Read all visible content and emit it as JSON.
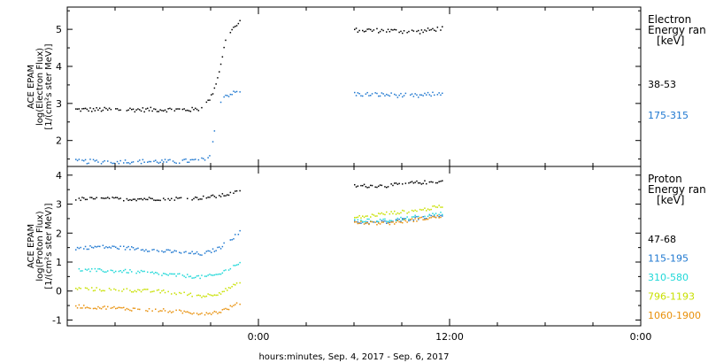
{
  "chart_data": [
    {
      "type": "scatter",
      "panel": "electron",
      "ylabel_lines": [
        "ACE EPAM",
        "log(Electron Flux)",
        "[1/(cm²s ster MeV)]"
      ],
      "ylim": [
        1.3,
        5.6
      ],
      "yticks": [
        2,
        3,
        4,
        5
      ],
      "xlim": [
        -12,
        24
      ],
      "legend_title_lines": [
        "Electron",
        "Energy ran",
        "[keV]"
      ],
      "series": [
        {
          "name": "38-53",
          "color": "#000000",
          "segments": [
            [
              [
                -11.5,
                2.85
              ],
              [
                -8,
                2.85
              ],
              [
                -4,
                2.85
              ],
              [
                -3.5,
                2.9
              ],
              [
                -3.0,
                3.2
              ],
              [
                -2.6,
                3.7
              ],
              [
                -2.3,
                4.3
              ],
              [
                -2.0,
                4.9
              ],
              [
                -1.2,
                5.2
              ]
            ],
            [
              [
                6.0,
                5.0
              ],
              [
                8,
                4.98
              ],
              [
                10,
                4.95
              ],
              [
                11.5,
                5.05
              ]
            ]
          ]
        },
        {
          "name": "175-315",
          "color": "#1f78d0",
          "segments": [
            [
              [
                -11.5,
                1.45
              ],
              [
                -8,
                1.45
              ],
              [
                -5,
                1.45
              ],
              [
                -3.2,
                1.5
              ],
              [
                -2.9,
                2.0
              ],
              [
                -2.6,
                2.8
              ],
              [
                -2.3,
                3.2
              ],
              [
                -1.2,
                3.35
              ]
            ],
            [
              [
                6.0,
                3.27
              ],
              [
                8,
                3.25
              ],
              [
                10,
                3.22
              ],
              [
                11.5,
                3.3
              ]
            ]
          ]
        }
      ]
    },
    {
      "type": "scatter",
      "panel": "proton",
      "ylabel_lines": [
        "ACE EPAM",
        "log(Proton Flux)",
        "[1/(cm²s ster MeV)]"
      ],
      "ylim": [
        -1.2,
        4.3
      ],
      "yticks": [
        -1,
        0,
        1,
        2,
        3,
        4
      ],
      "xlim": [
        -12,
        24
      ],
      "xticks": [
        0,
        12,
        24
      ],
      "xticklabels": [
        "0:00",
        "12:00",
        "0:00"
      ],
      "xlabel": "hours:minutes, Sep.  4, 2017 - Sep.  6, 2017",
      "legend_title_lines": [
        "Proton",
        "Energy ran",
        "[keV]"
      ],
      "series": [
        {
          "name": "47-68",
          "color": "#000000",
          "segments": [
            [
              [
                -11.5,
                3.2
              ],
              [
                -8,
                3.2
              ],
              [
                -4,
                3.22
              ],
              [
                -2.5,
                3.3
              ],
              [
                -1.2,
                3.45
              ]
            ],
            [
              [
                6.0,
                3.65
              ],
              [
                8,
                3.65
              ],
              [
                9.5,
                3.75
              ],
              [
                11.5,
                3.8
              ]
            ]
          ]
        },
        {
          "name": "115-195",
          "color": "#1f78d0",
          "segments": [
            [
              [
                -11.5,
                1.5
              ],
              [
                -10,
                1.55
              ],
              [
                -8,
                1.5
              ],
              [
                -6,
                1.4
              ],
              [
                -3.5,
                1.3
              ],
              [
                -2.5,
                1.5
              ],
              [
                -1.2,
                2.05
              ]
            ],
            [
              [
                6.0,
                2.4
              ],
              [
                8,
                2.4
              ],
              [
                10,
                2.55
              ],
              [
                11.5,
                2.65
              ]
            ]
          ]
        },
        {
          "name": "310-580",
          "color": "#20d8d8",
          "segments": [
            [
              [
                -11.5,
                0.75
              ],
              [
                -8,
                0.7
              ],
              [
                -6,
                0.6
              ],
              [
                -3.5,
                0.5
              ],
              [
                -2.5,
                0.6
              ],
              [
                -1.2,
                1.0
              ]
            ],
            [
              [
                6.0,
                2.45
              ],
              [
                8,
                2.45
              ],
              [
                10,
                2.6
              ],
              [
                11.5,
                2.7
              ]
            ]
          ]
        },
        {
          "name": "796-1193",
          "color": "#c8e000",
          "segments": [
            [
              [
                -11.5,
                0.1
              ],
              [
                -8,
                0.05
              ],
              [
                -6,
                0.0
              ],
              [
                -3.5,
                -0.15
              ],
              [
                -2.5,
                -0.05
              ],
              [
                -1.2,
                0.3
              ]
            ],
            [
              [
                6.0,
                2.55
              ],
              [
                8,
                2.7
              ],
              [
                10,
                2.8
              ],
              [
                11.5,
                2.95
              ]
            ]
          ]
        },
        {
          "name": "1060-1900",
          "color": "#e8900a",
          "segments": [
            [
              [
                -11.5,
                -0.5
              ],
              [
                -8,
                -0.6
              ],
              [
                -6,
                -0.65
              ],
              [
                -3.5,
                -0.75
              ],
              [
                -2.5,
                -0.7
              ],
              [
                -1.2,
                -0.4
              ]
            ],
            [
              [
                6.0,
                2.4
              ],
              [
                8,
                2.35
              ],
              [
                10,
                2.5
              ],
              [
                11.5,
                2.6
              ]
            ]
          ]
        }
      ]
    }
  ]
}
